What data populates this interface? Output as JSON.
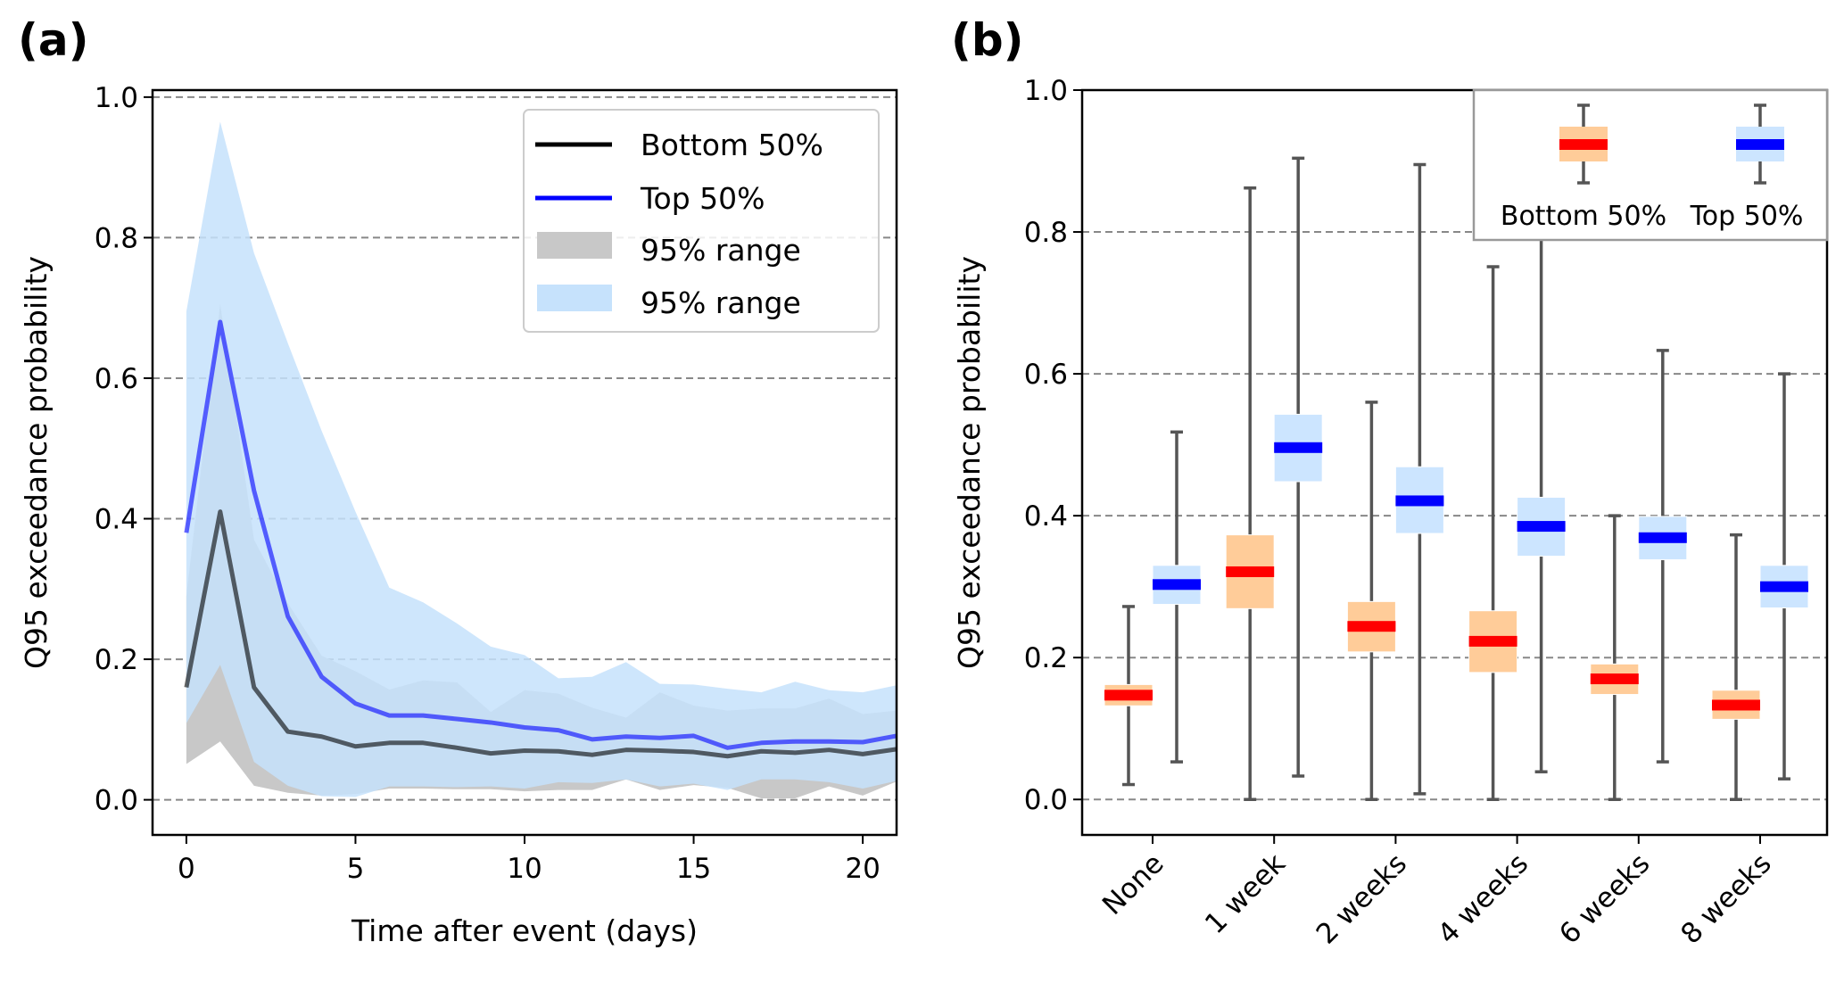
{
  "figure": {
    "panels": [
      "(a)",
      "(b)"
    ]
  },
  "colors": {
    "bottom_line": "#000000",
    "top_line": "#0000ff",
    "gray_band": "#c8c8c8",
    "blue_band": "#c6e2fc",
    "bottom_box": "#ffcc99",
    "bottom_median": "#ff0000",
    "top_box": "#cce5ff",
    "top_median": "#0000ff",
    "whisker": "#555555",
    "grid": "#888888"
  },
  "chart_data": [
    {
      "panel": "(a)",
      "type": "line",
      "title": "",
      "xlabel": "Time after event (days)",
      "ylabel": "Q95 exceedance probability",
      "xlim": [
        -1,
        21
      ],
      "ylim": [
        -0.05,
        1.01
      ],
      "xticks": [
        0,
        5,
        10,
        15,
        20
      ],
      "xtick_labels": [
        "0",
        "5",
        "10",
        "15",
        "20"
      ],
      "yticks": [
        0.0,
        0.2,
        0.4,
        0.6,
        0.8,
        1.0
      ],
      "ytick_labels": [
        "0.0",
        "0.2",
        "0.4",
        "0.6",
        "0.8",
        "1.0"
      ],
      "grid": "y, dashed",
      "legend_position": "top-right",
      "legend": [
        {
          "label": "Bottom 50%",
          "kind": "line",
          "series": "bottom"
        },
        {
          "label": "Top 50%",
          "kind": "line",
          "series": "top"
        },
        {
          "label": "95% range",
          "kind": "patch",
          "series": "bottom_band"
        },
        {
          "label": "95% range",
          "kind": "patch",
          "series": "top_band"
        }
      ],
      "x": [
        0,
        1,
        2,
        3,
        4,
        5,
        6,
        7,
        8,
        9,
        10,
        11,
        12,
        13,
        14,
        15,
        16,
        17,
        18,
        19,
        20,
        21
      ],
      "series": [
        {
          "name": "Bottom 50%",
          "key": "bottom",
          "values": [
            0.16,
            0.41,
            0.16,
            0.097,
            0.09,
            0.076,
            0.081,
            0.081,
            0.074,
            0.066,
            0.07,
            0.069,
            0.064,
            0.071,
            0.07,
            0.068,
            0.062,
            0.069,
            0.067,
            0.071,
            0.065,
            0.072
          ]
        },
        {
          "name": "Top 50%",
          "key": "top",
          "values": [
            0.38,
            0.68,
            0.44,
            0.261,
            0.175,
            0.137,
            0.12,
            0.12,
            0.115,
            0.11,
            0.103,
            0.099,
            0.086,
            0.09,
            0.088,
            0.091,
            0.074,
            0.081,
            0.083,
            0.083,
            0.082,
            0.091
          ]
        }
      ],
      "bands": [
        {
          "name": "95% range (Bottom 50%)",
          "key": "bottom_band",
          "lower": [
            0.051,
            0.083,
            0.02,
            0.01,
            0.006,
            0.008,
            0.016,
            0.016,
            0.015,
            0.015,
            0.012,
            0.014,
            0.014,
            0.029,
            0.014,
            0.021,
            0.017,
            0.002,
            0.002,
            0.019,
            0.006,
            0.026
          ],
          "upper": [
            0.29,
            0.706,
            0.37,
            0.28,
            0.205,
            0.183,
            0.157,
            0.17,
            0.167,
            0.125,
            0.156,
            0.151,
            0.131,
            0.117,
            0.153,
            0.134,
            0.127,
            0.13,
            0.13,
            0.144,
            0.122,
            0.127
          ]
        },
        {
          "name": "95% range (Top 50%)",
          "key": "top_band",
          "lower": [
            0.109,
            0.192,
            0.054,
            0.02,
            0.005,
            0.004,
            0.019,
            0.019,
            0.018,
            0.019,
            0.016,
            0.025,
            0.024,
            0.029,
            0.019,
            0.023,
            0.014,
            0.029,
            0.029,
            0.025,
            0.016,
            0.027
          ],
          "upper": [
            0.695,
            0.965,
            0.778,
            0.65,
            0.525,
            0.41,
            0.302,
            0.281,
            0.251,
            0.218,
            0.206,
            0.173,
            0.175,
            0.196,
            0.165,
            0.164,
            0.158,
            0.153,
            0.168,
            0.156,
            0.153,
            0.163
          ]
        }
      ]
    },
    {
      "panel": "(b)",
      "type": "box",
      "title": "",
      "xlabel": "",
      "ylabel": "Q95 exceedance probability",
      "ylim": [
        -0.05,
        1.0
      ],
      "yticks": [
        0.0,
        0.2,
        0.4,
        0.6,
        0.8,
        1.0
      ],
      "ytick_labels": [
        "0.0",
        "0.2",
        "0.4",
        "0.6",
        "0.8",
        "1.0"
      ],
      "grid": "y, dashed",
      "legend_position": "top-right",
      "legend": [
        {
          "label": "Bottom 50%",
          "series": "bottom"
        },
        {
          "label": "Top 50%",
          "series": "top"
        }
      ],
      "categories": [
        "None",
        "1 week",
        "2 weeks",
        "4 weeks",
        "6 weeks",
        "8 weeks"
      ],
      "series": [
        {
          "name": "Bottom 50%",
          "key": "bottom",
          "whisker_low": [
            0.021,
            0.0,
            0.0,
            0.0,
            0.0,
            0.0
          ],
          "q1": [
            0.132,
            0.269,
            0.208,
            0.179,
            0.148,
            0.113
          ],
          "median": [
            0.147,
            0.321,
            0.244,
            0.223,
            0.17,
            0.133
          ],
          "q3": [
            0.162,
            0.373,
            0.279,
            0.266,
            0.191,
            0.154
          ],
          "whisker_high": [
            0.272,
            0.862,
            0.56,
            0.751,
            0.4,
            0.373
          ]
        },
        {
          "name": "Top 50%",
          "key": "top",
          "whisker_low": [
            0.053,
            0.033,
            0.008,
            0.039,
            0.053,
            0.029
          ],
          "q1": [
            0.275,
            0.448,
            0.375,
            0.343,
            0.338,
            0.27
          ],
          "median": [
            0.303,
            0.496,
            0.421,
            0.385,
            0.369,
            0.3
          ],
          "q3": [
            0.33,
            0.543,
            0.469,
            0.426,
            0.399,
            0.33
          ],
          "whisker_high": [
            0.518,
            0.904,
            0.895,
            0.85,
            0.633,
            0.6
          ]
        }
      ]
    }
  ]
}
